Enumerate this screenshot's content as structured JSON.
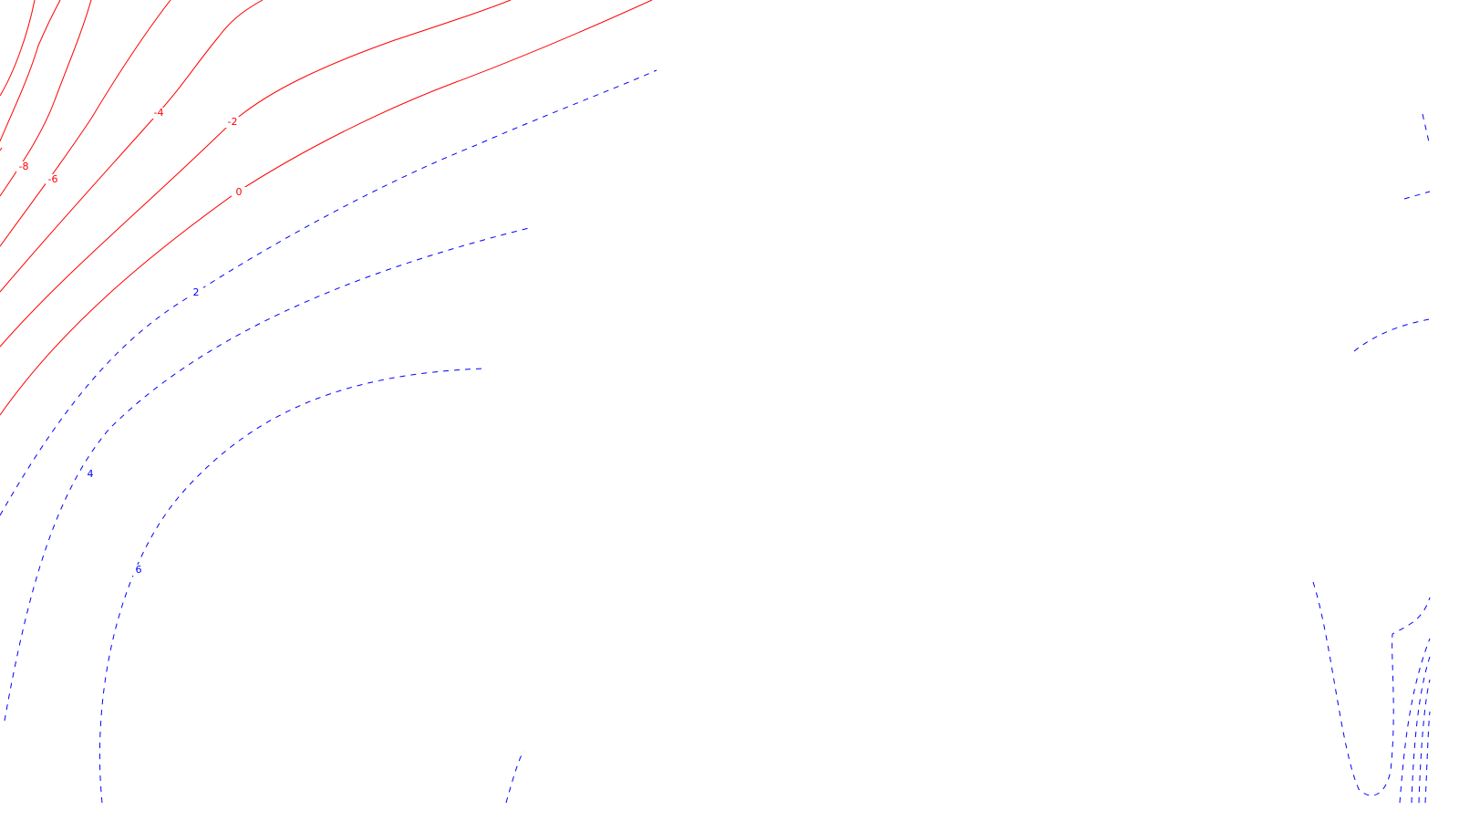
{
  "chart_data": {
    "type": "contour",
    "title": "",
    "xlabel": "",
    "ylabel": "",
    "grid": false,
    "legend": "none",
    "colors": {
      "negative": "#ff0000",
      "positive": "#0000ff"
    },
    "line_styles": {
      "negative": "solid",
      "zero": "solid",
      "positive": "dashed"
    },
    "levels": [
      -8,
      -6,
      -4,
      -2,
      0,
      2,
      4,
      6
    ],
    "labeled_levels": [
      {
        "value": -8,
        "text": "-8",
        "sign": "negative"
      },
      {
        "value": -6,
        "text": "-6",
        "sign": "negative"
      },
      {
        "value": -4,
        "text": "-4",
        "sign": "negative"
      },
      {
        "value": -2,
        "text": "-2",
        "sign": "negative"
      },
      {
        "value": 0,
        "text": "0",
        "sign": "negative"
      },
      {
        "value": 2,
        "text": "2",
        "sign": "positive"
      },
      {
        "value": 4,
        "text": "4",
        "sign": "positive"
      },
      {
        "value": 6,
        "text": "6",
        "sign": "positive"
      }
    ]
  }
}
